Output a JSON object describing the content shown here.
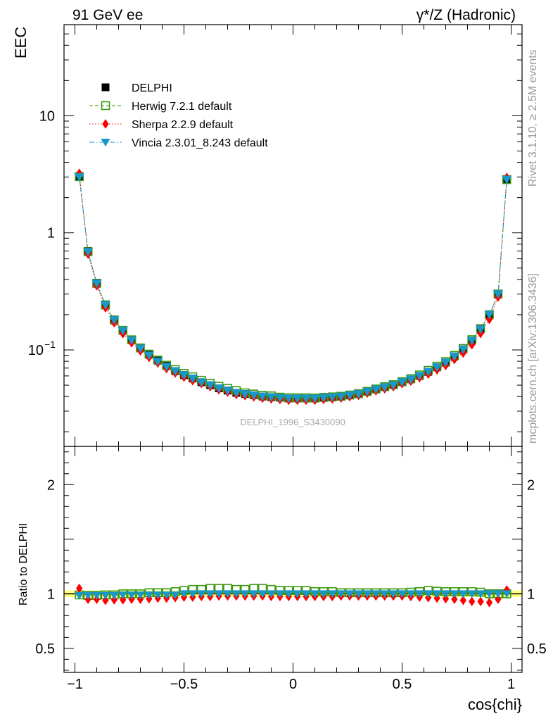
{
  "header": {
    "left_title": "91 GeV ee",
    "right_title": "γ*/Z (Hadronic)"
  },
  "side_labels": {
    "rivet": "Rivet 3.1.10, ≥ 2.5M events",
    "mcplots": "mcplots.cern.ch [arXiv:1306.3436]"
  },
  "watermark": "DELPHI_1996_S3430090",
  "chart_data": [
    {
      "id": "main",
      "type": "scatter",
      "yscale": "log",
      "ylabel": "EEC",
      "xlim": [
        -1.05,
        1.05
      ],
      "ylim": [
        0.015,
        60
      ],
      "y_ticks": [
        {
          "value": 0.1,
          "label": "10",
          "sup": "−1"
        },
        {
          "value": 1,
          "label": "1",
          "sup": ""
        },
        {
          "value": 10,
          "label": "10",
          "sup": ""
        }
      ],
      "legend_position": "top-left",
      "x": [
        -0.98,
        -0.94,
        -0.9,
        -0.86,
        -0.82,
        -0.78,
        -0.74,
        -0.7,
        -0.66,
        -0.62,
        -0.58,
        -0.54,
        -0.5,
        -0.46,
        -0.42,
        -0.38,
        -0.34,
        -0.3,
        -0.26,
        -0.22,
        -0.18,
        -0.14,
        -0.1,
        -0.06,
        -0.02,
        0.02,
        0.06,
        0.1,
        0.14,
        0.18,
        0.22,
        0.26,
        0.3,
        0.34,
        0.38,
        0.42,
        0.46,
        0.5,
        0.54,
        0.58,
        0.62,
        0.66,
        0.7,
        0.74,
        0.78,
        0.82,
        0.86,
        0.9,
        0.94,
        0.98
      ],
      "series": [
        {
          "name": "DELPHI",
          "color": "#000000",
          "marker": "square-filled",
          "line": "none",
          "values": [
            3.05,
            0.7,
            0.375,
            0.245,
            0.182,
            0.147,
            0.122,
            0.104,
            0.091,
            0.081,
            0.073,
            0.066,
            0.061,
            0.057,
            0.053,
            0.05,
            0.047,
            0.045,
            0.043,
            0.042,
            0.041,
            0.04,
            0.0395,
            0.039,
            0.0385,
            0.0385,
            0.0385,
            0.0385,
            0.039,
            0.0395,
            0.04,
            0.041,
            0.042,
            0.044,
            0.046,
            0.048,
            0.05,
            0.053,
            0.056,
            0.06,
            0.065,
            0.071,
            0.078,
            0.088,
            0.101,
            0.12,
            0.15,
            0.2,
            0.3,
            2.85
          ]
        },
        {
          "name": "Herwig 7.2.1 default",
          "color": "#3a9a0e",
          "marker": "square-open",
          "line": "dashed",
          "values": [
            3.02,
            0.69,
            0.37,
            0.242,
            0.18,
            0.147,
            0.122,
            0.104,
            0.092,
            0.082,
            0.074,
            0.068,
            0.063,
            0.059,
            0.055,
            0.052,
            0.049,
            0.047,
            0.045,
            0.043,
            0.042,
            0.041,
            0.0405,
            0.0395,
            0.039,
            0.039,
            0.039,
            0.0388,
            0.0393,
            0.0397,
            0.0402,
            0.0412,
            0.0423,
            0.0443,
            0.0464,
            0.0485,
            0.0505,
            0.0536,
            0.0568,
            0.0612,
            0.0669,
            0.0726,
            0.0795,
            0.0898,
            0.1029,
            0.1223,
            0.1521,
            0.2,
            0.3,
            2.85
          ]
        },
        {
          "name": "Sherpa 2.2.9 default",
          "color": "#ff0000",
          "marker": "diamond-filled",
          "line": "dotted",
          "values": [
            3.2,
            0.665,
            0.356,
            0.231,
            0.172,
            0.139,
            0.116,
            0.099,
            0.087,
            0.078,
            0.07,
            0.064,
            0.059,
            0.055,
            0.052,
            0.049,
            0.046,
            0.044,
            0.042,
            0.041,
            0.04,
            0.039,
            0.0385,
            0.038,
            0.0375,
            0.0375,
            0.0375,
            0.0375,
            0.038,
            0.0385,
            0.0392,
            0.0402,
            0.0412,
            0.0431,
            0.0451,
            0.047,
            0.049,
            0.0519,
            0.0546,
            0.0583,
            0.0627,
            0.0681,
            0.0743,
            0.0836,
            0.0949,
            0.1116,
            0.1395,
            0.184,
            0.285,
            2.95
          ]
        },
        {
          "name": "Vincia 2.3.01_8.243 default",
          "color": "#1a96c8",
          "marker": "triangle-down-filled",
          "line": "dashdot",
          "values": [
            3.0,
            0.69,
            0.37,
            0.242,
            0.18,
            0.146,
            0.121,
            0.103,
            0.09,
            0.08,
            0.072,
            0.066,
            0.061,
            0.057,
            0.053,
            0.05,
            0.047,
            0.045,
            0.043,
            0.042,
            0.041,
            0.04,
            0.0395,
            0.039,
            0.0385,
            0.0385,
            0.0385,
            0.0385,
            0.039,
            0.0395,
            0.04,
            0.041,
            0.042,
            0.0441,
            0.0461,
            0.0481,
            0.0501,
            0.0531,
            0.0561,
            0.0601,
            0.0652,
            0.0712,
            0.0782,
            0.0882,
            0.1012,
            0.1202,
            0.1501,
            0.2,
            0.3,
            2.85
          ]
        }
      ]
    },
    {
      "id": "ratio",
      "type": "scatter",
      "ylabel": "Ratio to DELPHI",
      "xlabel": "cos{chi}",
      "xlim": [
        -1.05,
        1.05
      ],
      "ylim": [
        0.28,
        2.35
      ],
      "x_ticks": [
        {
          "value": -1,
          "label": "−1"
        },
        {
          "value": -0.5,
          "label": "−0.5"
        },
        {
          "value": 0,
          "label": "0"
        },
        {
          "value": 0.5,
          "label": "0.5"
        },
        {
          "value": 1,
          "label": "1"
        }
      ],
      "y_ticks": [
        {
          "value": 0.5,
          "label": "0.5"
        },
        {
          "value": 1,
          "label": "1"
        },
        {
          "value": 2,
          "label": "2"
        }
      ],
      "reference_band": {
        "value": 1.0,
        "half_width": 0.03,
        "color": "#ffff80"
      },
      "series": [
        {
          "name": "Herwig 7.2.1 default",
          "color": "#3a9a0e",
          "marker": "square-open",
          "values": [
            0.99,
            0.985,
            0.985,
            0.99,
            0.99,
            1.0,
            1.0,
            1.0,
            1.01,
            1.01,
            1.01,
            1.02,
            1.03,
            1.04,
            1.04,
            1.05,
            1.05,
            1.05,
            1.04,
            1.04,
            1.05,
            1.05,
            1.04,
            1.03,
            1.03,
            1.03,
            1.03,
            1.02,
            1.02,
            1.02,
            1.01,
            1.01,
            1.01,
            1.01,
            1.01,
            1.01,
            1.01,
            1.01,
            1.015,
            1.02,
            1.03,
            1.023,
            1.02,
            1.02,
            1.02,
            1.02,
            1.015,
            1.0,
            1.0,
            1.0
          ]
        },
        {
          "name": "Sherpa 2.2.9 default",
          "color": "#ff0000",
          "marker": "diamond-filled",
          "values": [
            1.05,
            0.95,
            0.95,
            0.94,
            0.945,
            0.945,
            0.95,
            0.95,
            0.955,
            0.96,
            0.96,
            0.965,
            0.97,
            0.97,
            0.975,
            0.975,
            0.98,
            0.98,
            0.98,
            0.98,
            0.98,
            0.98,
            0.975,
            0.975,
            0.975,
            0.975,
            0.975,
            0.975,
            0.975,
            0.975,
            0.98,
            0.98,
            0.98,
            0.98,
            0.98,
            0.98,
            0.98,
            0.98,
            0.975,
            0.97,
            0.965,
            0.96,
            0.955,
            0.95,
            0.94,
            0.93,
            0.93,
            0.92,
            0.95,
            1.035
          ]
        },
        {
          "name": "Vincia 2.3.01_8.243 default",
          "color": "#1a96c8",
          "marker": "triangle-down-filled",
          "values": [
            0.985,
            0.985,
            0.985,
            0.985,
            0.985,
            0.99,
            0.99,
            0.99,
            0.99,
            0.99,
            0.99,
            0.99,
            1.0,
            1.0,
            1.0,
            1.0,
            1.0,
            1.0,
            1.0,
            1.0,
            1.0,
            1.0,
            1.0,
            1.0,
            1.0,
            1.0,
            1.0,
            1.0,
            1.0,
            1.0,
            1.0,
            1.0,
            1.0,
            1.0,
            1.0,
            1.0,
            1.0,
            1.0,
            1.0,
            1.0,
            1.0,
            1.0,
            1.0,
            1.0,
            1.0,
            1.0,
            1.0,
            1.0,
            1.0,
            1.0
          ]
        }
      ]
    }
  ]
}
